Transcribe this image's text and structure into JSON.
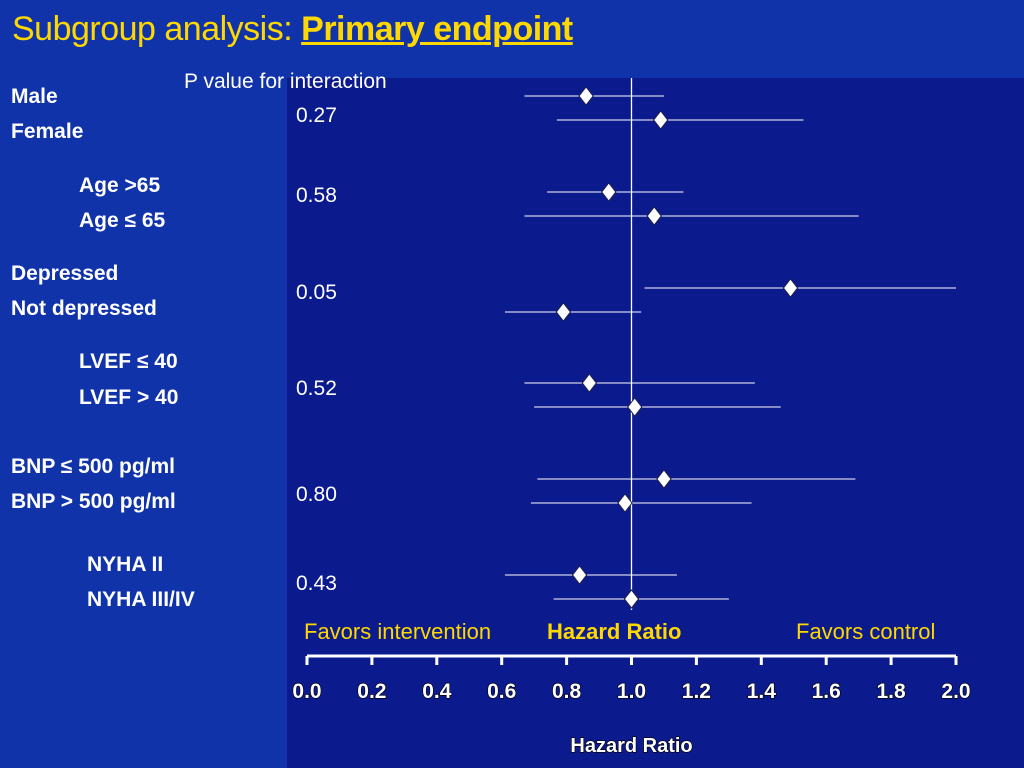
{
  "slide": {
    "title_prefix": "Subgroup analysis: ",
    "title_emph": "Primary endpoint",
    "p_header": "P value for interaction",
    "favors_left": "Favors intervention",
    "hazard_ratio_label": "Hazard Ratio",
    "favors_right": "Favors control",
    "x_axis_title": "Hazard Ratio"
  },
  "colors": {
    "background": "#1133aa",
    "plot_background": "#0b1a8c",
    "title": "#ffd800",
    "text": "#ffffff"
  },
  "chart_data": {
    "type": "forest",
    "title": "Subgroup analysis: Primary endpoint",
    "xlabel": "Hazard Ratio",
    "xlim": [
      0.0,
      2.0
    ],
    "x_ticks": [
      "0.0",
      "0.2",
      "0.4",
      "0.6",
      "0.8",
      "1.0",
      "1.2",
      "1.4",
      "1.6",
      "1.8",
      "2.0"
    ],
    "reference_line": 1.0,
    "subgroups": [
      {
        "label": "Male",
        "hr": 0.86,
        "ci": [
          0.67,
          1.1
        ]
      },
      {
        "label": "Female",
        "hr": 1.09,
        "ci": [
          0.77,
          1.53
        ]
      },
      {
        "label": "Age >65",
        "hr": 0.93,
        "ci": [
          0.74,
          1.16
        ]
      },
      {
        "label": "Age ≤ 65",
        "hr": 1.07,
        "ci": [
          0.67,
          1.7
        ]
      },
      {
        "label": "Depressed",
        "hr": 1.49,
        "ci": [
          1.04,
          2.0
        ]
      },
      {
        "label": "Not depressed",
        "hr": 0.79,
        "ci": [
          0.61,
          1.03
        ]
      },
      {
        "label": "LVEF ≤ 40",
        "hr": 0.87,
        "ci": [
          0.67,
          1.38
        ]
      },
      {
        "label": "LVEF > 40",
        "hr": 1.01,
        "ci": [
          0.7,
          1.46
        ]
      },
      {
        "label": "BNP ≤ 500 pg/ml",
        "hr": 1.1,
        "ci": [
          0.71,
          1.69
        ]
      },
      {
        "label": "BNP > 500 pg/ml",
        "hr": 0.98,
        "ci": [
          0.69,
          1.37
        ]
      },
      {
        "label": "NYHA II",
        "hr": 0.84,
        "ci": [
          0.61,
          1.14
        ]
      },
      {
        "label": "NYHA III/IV",
        "hr": 1.0,
        "ci": [
          0.76,
          1.3
        ]
      }
    ],
    "p_interaction": [
      "0.27",
      "0.58",
      "0.05",
      "0.52",
      "0.80",
      "0.43"
    ]
  }
}
